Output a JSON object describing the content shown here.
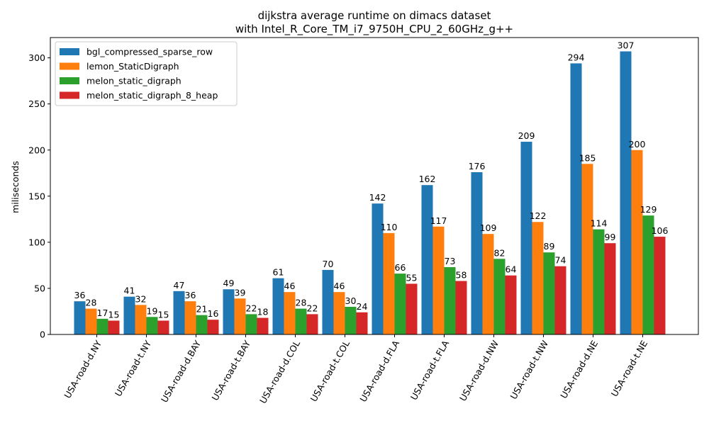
{
  "chart_data": {
    "type": "bar",
    "title": [
      "dijkstra average runtime on dimacs dataset",
      "with Intel_R_Core_TM_i7_9750H_CPU_2_60GHz_g++"
    ],
    "ylabel": "miliseconds",
    "xlabel": "",
    "ylim": [
      0,
      322
    ],
    "yticks": [
      0,
      50,
      100,
      150,
      200,
      250,
      300
    ],
    "categories": [
      "USA-road-d.NY",
      "USA-road-t.NY",
      "USA-road-d.BAY",
      "USA-road-t.BAY",
      "USA-road-d.COL",
      "USA-road-t.COL",
      "USA-road-d.FLA",
      "USA-road-t.FLA",
      "USA-road-d.NW",
      "USA-road-t.NW",
      "USA-road-d.NE",
      "USA-road-t.NE"
    ],
    "series": [
      {
        "name": "bgl_compressed_sparse_row",
        "color": "#1f77b4",
        "values": [
          36,
          41,
          47,
          49,
          61,
          70,
          142,
          162,
          176,
          209,
          294,
          307
        ]
      },
      {
        "name": "lemon_StaticDigraph",
        "color": "#ff7f0e",
        "values": [
          28,
          32,
          36,
          39,
          46,
          46,
          110,
          117,
          109,
          122,
          185,
          200
        ]
      },
      {
        "name": "melon_static_digraph",
        "color": "#2ca02c",
        "values": [
          17,
          19,
          21,
          22,
          28,
          30,
          66,
          73,
          82,
          89,
          114,
          129
        ]
      },
      {
        "name": "melon_static_digraph_8_heap",
        "color": "#d62728",
        "values": [
          15,
          15,
          16,
          18,
          22,
          24,
          55,
          58,
          64,
          74,
          99,
          106
        ]
      }
    ],
    "legend_position": "top-left",
    "grid": false
  }
}
